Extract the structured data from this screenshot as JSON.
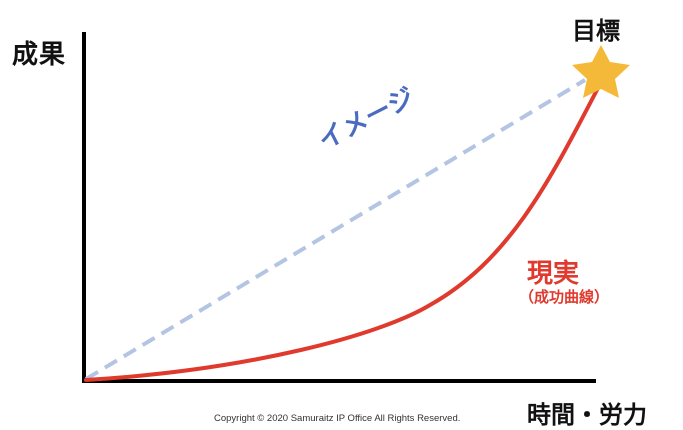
{
  "axes": {
    "y_label": "成果",
    "x_label": "時間・労力"
  },
  "goal": {
    "label": "目標",
    "icon": "star-icon",
    "color": "#f5b93a"
  },
  "image_line": {
    "label": "イメージ",
    "color": "#b3c5e3",
    "label_color": "#4a6bbf",
    "style": "dashed"
  },
  "reality_curve": {
    "label": "現実",
    "sublabel": "（成功曲線）",
    "color": "#e03a2e"
  },
  "copyright": "Copyright © 2020 Samuraitz IP Office All Rights Reserved.",
  "colors": {
    "axis": "#000000",
    "background": "#ffffff"
  }
}
